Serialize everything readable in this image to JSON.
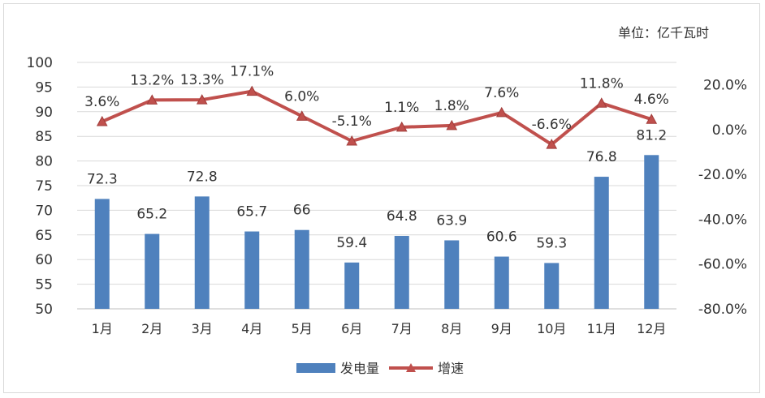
{
  "chart_data": {
    "type": "bar",
    "unit_label": "单位：亿千瓦时",
    "categories": [
      "1月",
      "2月",
      "3月",
      "4月",
      "5月",
      "6月",
      "7月",
      "8月",
      "9月",
      "10月",
      "11月",
      "12月"
    ],
    "series": [
      {
        "name": "发电量",
        "type": "bar",
        "axis": "left",
        "color": "#4f81bd",
        "values": [
          72.3,
          65.2,
          72.8,
          65.7,
          66,
          59.4,
          64.8,
          63.9,
          60.6,
          59.3,
          76.8,
          81.2
        ],
        "labels": [
          "72.3",
          "65.2",
          "72.8",
          "65.7",
          "66",
          "59.4",
          "64.8",
          "63.9",
          "60.6",
          "59.3",
          "76.8",
          "81.2"
        ]
      },
      {
        "name": "增速",
        "type": "line",
        "axis": "right",
        "color": "#c0504d",
        "values": [
          3.6,
          13.2,
          13.3,
          17.1,
          6.0,
          -5.1,
          1.1,
          1.8,
          7.6,
          -6.6,
          11.8,
          4.6
        ],
        "labels": [
          "3.6%",
          "13.2%",
          "13.3%",
          "17.1%",
          "6.0%",
          "-5.1%",
          "1.1%",
          "1.8%",
          "7.6%",
          "-6.6%",
          "11.8%",
          "4.6%"
        ]
      }
    ],
    "left_axis": {
      "range": [
        50,
        100
      ],
      "ticks": [
        50,
        55,
        60,
        65,
        70,
        75,
        80,
        85,
        90,
        95,
        100
      ],
      "tick_labels": [
        "50",
        "55",
        "60",
        "65",
        "70",
        "75",
        "80",
        "85",
        "90",
        "95",
        "100"
      ]
    },
    "right_axis": {
      "range": [
        -80,
        30
      ],
      "ticks": [
        -80,
        -60,
        -40,
        -20,
        0,
        20
      ],
      "tick_labels": [
        "-80.0%",
        "-60.0%",
        "-40.0%",
        "-20.0%",
        "0.0%",
        "20.0%"
      ]
    },
    "grid": true,
    "legend_position": "bottom"
  }
}
